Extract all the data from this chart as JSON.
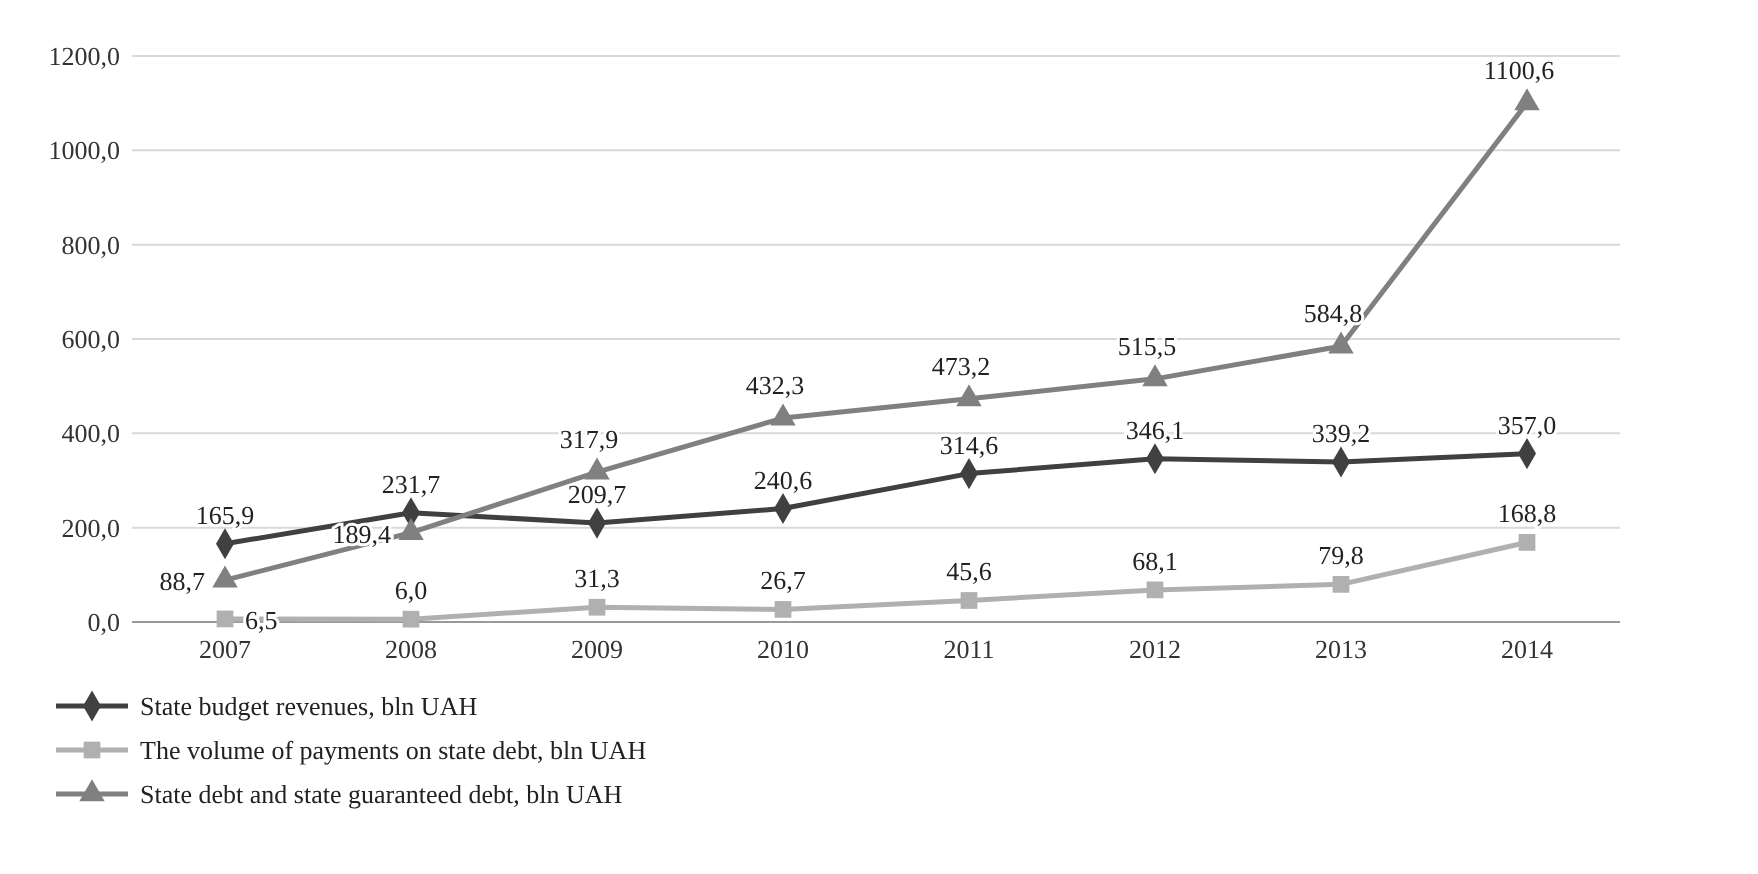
{
  "chart_data": {
    "type": "line",
    "categories": [
      "2007",
      "2008",
      "2009",
      "2010",
      "2011",
      "2012",
      "2013",
      "2014"
    ],
    "ylim": [
      0,
      1200
    ],
    "yticks": [
      {
        "value": 0,
        "label": "0,0"
      },
      {
        "value": 200,
        "label": "200,0"
      },
      {
        "value": 400,
        "label": "400,0"
      },
      {
        "value": 600,
        "label": "600,0"
      },
      {
        "value": 800,
        "label": "800,0"
      },
      {
        "value": 1000,
        "label": "1000,0"
      },
      {
        "value": 1200,
        "label": "1200,0"
      }
    ],
    "grid": "y",
    "legend": "bottom",
    "line_style": "solid",
    "series": [
      {
        "name": "State budget revenues, bln UAH",
        "color": "#404040",
        "marker": "diamond",
        "values": [
          165.9,
          231.7,
          209.7,
          240.6,
          314.6,
          346.1,
          339.2,
          357.0
        ],
        "value_labels": [
          "165,9",
          "231,7",
          "209,7",
          "240,6",
          "314,6",
          "346,1",
          "339,2",
          "357,0"
        ]
      },
      {
        "name": "The volume of payments on state debt, bln UAH",
        "color": "#b0b0b0",
        "marker": "square",
        "values": [
          6.5,
          6.0,
          31.3,
          26.7,
          45.6,
          68.1,
          79.8,
          168.8
        ],
        "value_labels": [
          "6,5",
          "6,0",
          "31,3",
          "26,7",
          "45,6",
          "68,1",
          "79,8",
          "168,8"
        ]
      },
      {
        "name": "State debt and  state guaranteed debt, bln UAH",
        "color": "#808080",
        "marker": "triangle",
        "values": [
          88.7,
          189.4,
          317.9,
          432.3,
          473.2,
          515.5,
          584.8,
          1100.6
        ],
        "value_labels": [
          "88,7",
          "189,4",
          "317,9",
          "432,3",
          "473,2",
          "515,5",
          "584,8",
          "1100,6"
        ]
      }
    ]
  }
}
